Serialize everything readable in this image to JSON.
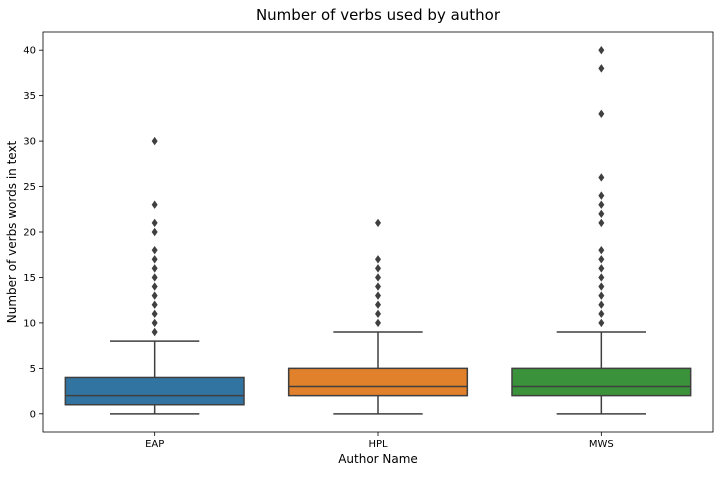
{
  "chart_data": {
    "type": "box",
    "title": "Number of verbs used by author",
    "xlabel": "Author Name",
    "ylabel": "Number of verbs words in text",
    "ylim": [
      -2,
      42
    ],
    "yticks": [
      0,
      5,
      10,
      15,
      20,
      25,
      30,
      35,
      40
    ],
    "categories": [
      "EAP",
      "HPL",
      "MWS"
    ],
    "series": [
      {
        "category": "EAP",
        "color": "#3274a1",
        "whisker_low": 0,
        "q1": 1,
        "median": 2,
        "q3": 4,
        "whisker_high": 8,
        "outliers": [
          9,
          10,
          11,
          12,
          13,
          14,
          15,
          16,
          17,
          18,
          20,
          21,
          23,
          30
        ]
      },
      {
        "category": "HPL",
        "color": "#e1812c",
        "whisker_low": 0,
        "q1": 2,
        "median": 3,
        "q3": 5,
        "whisker_high": 9,
        "outliers": [
          10,
          11,
          12,
          13,
          14,
          15,
          16,
          17,
          21
        ]
      },
      {
        "category": "MWS",
        "color": "#3a923a",
        "whisker_low": 0,
        "q1": 2,
        "median": 3,
        "q3": 5,
        "whisker_high": 9,
        "outliers": [
          10,
          11,
          12,
          13,
          14,
          15,
          16,
          17,
          18,
          21,
          22,
          23,
          24,
          26,
          33,
          38,
          40
        ]
      }
    ]
  }
}
